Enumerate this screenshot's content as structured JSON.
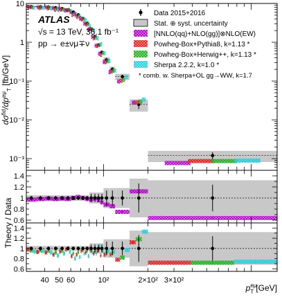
{
  "chart_data": {
    "type": "scatter",
    "experiment": "ATLAS",
    "energy_lumi": "√s = 13 TeV, 36.1 fb⁻¹",
    "process": "pp → e±νμ∓ν",
    "x_unit": "[GeV]",
    "x_ticks": [
      "40",
      "50",
      "60",
      "10²",
      "2×10²",
      "3×10²"
    ],
    "x_scale": "log",
    "xlim": [
      30,
      1500
    ],
    "y_scale": "log",
    "ylim": [
      0.0005,
      10
    ],
    "y_ticks": [
      "10",
      "1",
      "10⁻¹",
      "10⁻²",
      "10⁻³"
    ],
    "ratio_label": "Theory / Data",
    "ratio_ylim": [
      0.55,
      1.5
    ],
    "ratio_ticks": [
      "1.4",
      "1.2",
      "1",
      "0.8",
      "0.6"
    ],
    "bins": [
      30,
      35,
      40,
      45,
      50,
      55,
      60,
      65,
      70,
      75,
      80,
      85,
      90,
      95,
      100,
      110,
      120,
      150,
      200,
      1500
    ],
    "data": {
      "name": "Data 2015+2016",
      "values": [
        8.3,
        8.2,
        8.1,
        7.8,
        7.4,
        6.8,
        6.0,
        5.1,
        4.1,
        3.1,
        2.2,
        1.4,
        0.85,
        0.55,
        0.35,
        0.2,
        0.13,
        0.025,
        0.0012
      ]
    },
    "ratio1": [
      {
        "name": "[NNLO(qq)+NLO(gg)]⊗NLO(EW)",
        "color": "#b000c8",
        "values": [
          0.97,
          0.98,
          0.99,
          0.98,
          0.99,
          0.98,
          1.0,
          1.02,
          1.0,
          0.98,
          0.97,
          0.99,
          0.96,
          0.92,
          0.88,
          0.85,
          0.75,
          1.12,
          0.64
        ]
      }
    ],
    "ratio2": [
      {
        "name": "Powheg-Box+Pythia8, k=1.13 *",
        "color": "#e02020",
        "values": [
          0.98,
          0.93,
          0.92,
          0.88,
          0.94,
          0.98,
          0.85,
          0.88,
          0.95,
          0.92,
          1.0,
          0.9,
          0.95,
          0.86,
          0.88,
          0.88,
          0.78,
          1.12,
          0.72
        ]
      },
      {
        "name": "Powheg-Box+Herwig++, k=1.13 *",
        "color": "#20b020",
        "values": [
          0.96,
          0.96,
          0.95,
          0.92,
          0.95,
          1.0,
          0.9,
          0.93,
          0.97,
          0.95,
          0.98,
          0.94,
          1.0,
          0.96,
          0.93,
          0.92,
          0.82,
          1.18,
          0.72
        ]
      },
      {
        "name": "Sherpa 2.2.2, k=1.0 *",
        "color": "#20d0e0",
        "values": [
          0.94,
          0.95,
          0.92,
          0.86,
          0.9,
          0.93,
          0.8,
          0.83,
          0.9,
          0.85,
          0.92,
          0.9,
          1.05,
          0.95,
          0.95,
          0.93,
          0.97,
          1.33,
          0.74
        ]
      }
    ],
    "legend": {
      "data": "Data 2015+2016",
      "unc": "Stat. ⊕ syst. uncertainty",
      "footnote": "* comb. w. Sherpa+OL gg→WW, k=1.7"
    }
  }
}
